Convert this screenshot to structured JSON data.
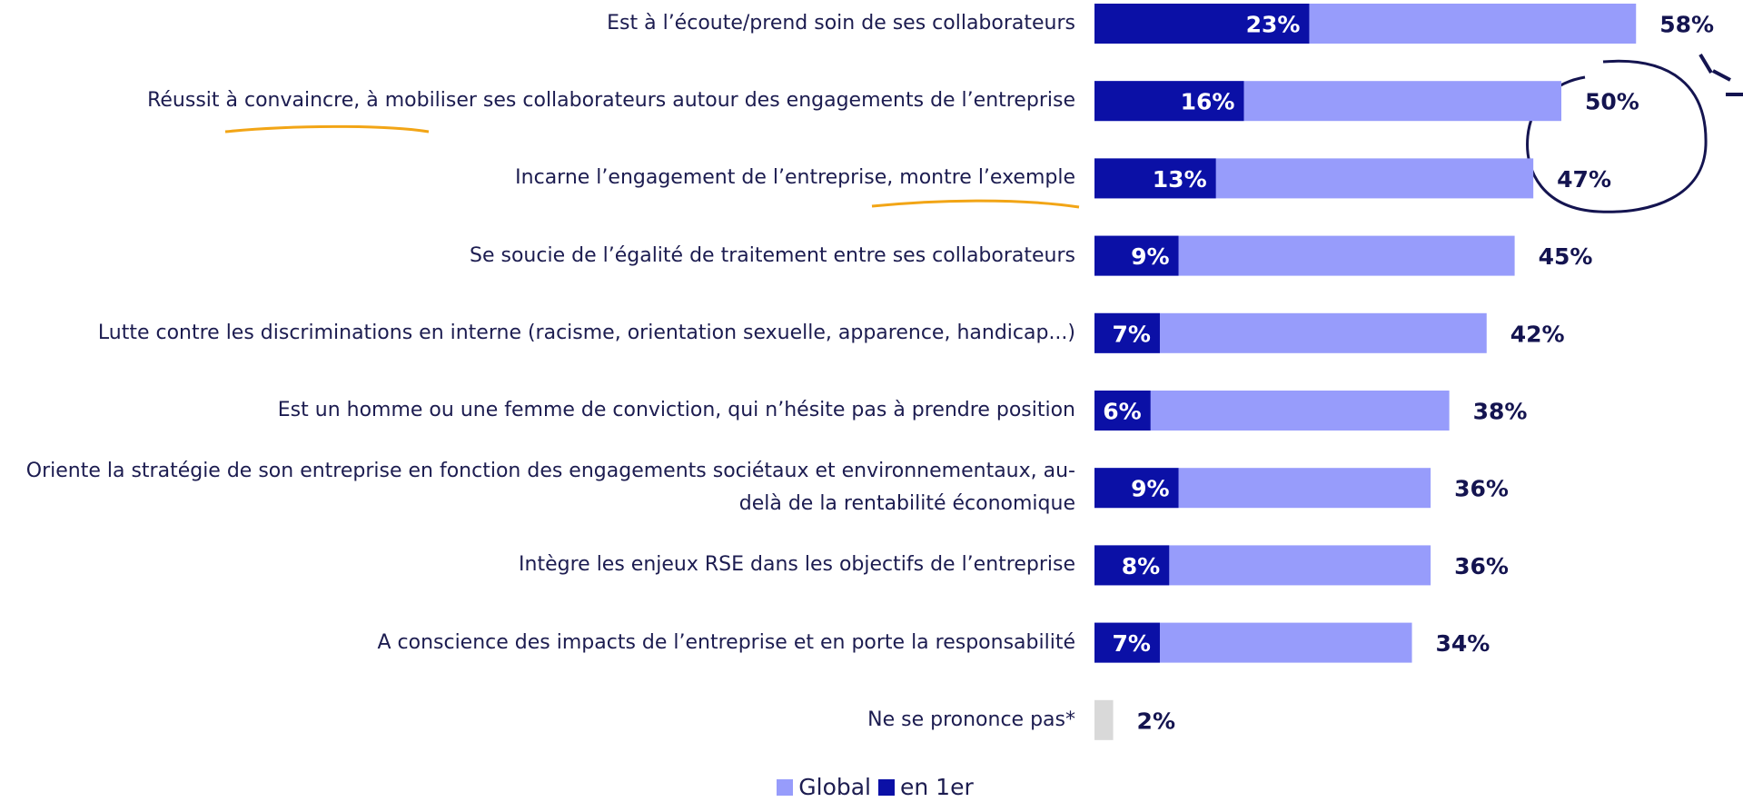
{
  "chart_data": {
    "type": "bar",
    "categories": [
      "Est à l’écoute/prend soin de ses collaborateurs",
      "Réussit à convaincre, à mobiliser ses collaborateurs autour des engagements de l’entreprise",
      "Incarne l’engagement de l’entreprise, montre l’exemple",
      "Se soucie de l’égalité de traitement entre ses collaborateurs",
      "Lutte contre les discriminations en interne (racisme, orientation sexuelle, apparence, handicap...)",
      "Est un homme ou une femme de conviction, qui n’hésite pas à prendre position",
      "Oriente la stratégie de son entreprise en fonction des engagements sociétaux et environnementaux, au-delà de la rentabilité économique",
      "Intègre les enjeux RSE dans les objectifs de l’entreprise",
      "A conscience des impacts de l’entreprise et en porte la responsabilité",
      "Ne se prononce pas*"
    ],
    "series": [
      {
        "name": "Global",
        "color": "#979cfb",
        "colors": [
          "#979cfb",
          "#979cfb",
          "#979cfb",
          "#979cfb",
          "#979cfb",
          "#979cfb",
          "#979cfb",
          "#979cfb",
          "#979cfb",
          "#d9d9d9"
        ],
        "values": [
          58,
          50,
          47,
          45,
          42,
          38,
          36,
          36,
          34,
          2
        ],
        "value_labels": [
          "58%",
          "50%",
          "47%",
          "45%",
          "42%",
          "38%",
          "36%",
          "36%",
          "34%",
          "2%"
        ]
      },
      {
        "name": "en 1er",
        "color": "#0b10a6",
        "values": [
          23,
          16,
          13,
          9,
          7,
          6,
          9,
          8,
          7,
          null
        ],
        "value_labels": [
          "23%",
          "16%",
          "13%",
          "9%",
          "7%",
          "6%",
          "9%",
          "8%",
          "7%",
          null
        ]
      }
    ]
  }
}
